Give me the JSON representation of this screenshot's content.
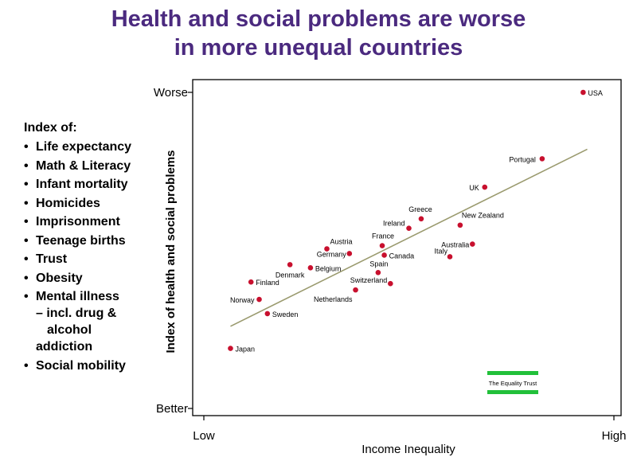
{
  "title_line1": "Health and social problems are worse",
  "title_line2": "in more unequal countries",
  "index_panel": {
    "heading": "Index of:",
    "items": [
      {
        "lines": [
          "Life expectancy"
        ]
      },
      {
        "lines": [
          "Math & Literacy"
        ]
      },
      {
        "lines": [
          "Infant mortality"
        ]
      },
      {
        "lines": [
          "Homicides"
        ]
      },
      {
        "lines": [
          "Imprisonment"
        ]
      },
      {
        "lines": [
          "Teenage births"
        ]
      },
      {
        "lines": [
          "Trust"
        ]
      },
      {
        "lines": [
          "Obesity"
        ]
      },
      {
        "lines": [
          "Mental illness",
          "– incl. drug &",
          "alcohol",
          "addiction"
        ]
      },
      {
        "lines": [
          "Social mobility"
        ]
      }
    ]
  },
  "logo_text": "The Equality Trust",
  "colors": {
    "title": "#4b2a7f",
    "points": "#c8102e",
    "trend": "#9a9a6e",
    "logo_green": "#22c03a"
  },
  "chart_data": {
    "type": "scatter",
    "xlabel": "Income Inequality",
    "ylabel": "Index of health and social problems",
    "x_tick_labels": [
      "Low",
      "High"
    ],
    "y_tick_labels": [
      "Worse",
      "Better"
    ],
    "xlim": [
      0,
      100
    ],
    "ylim": [
      0,
      100
    ],
    "grid": false,
    "trend_line": {
      "x": [
        6.5,
        93.5
      ],
      "y": [
        26,
        82
      ]
    },
    "points": [
      {
        "label": "USA",
        "x": 92.5,
        "y": 100
      },
      {
        "label": "Portugal",
        "x": 82.5,
        "y": 79
      },
      {
        "label": "UK",
        "x": 68.5,
        "y": 70
      },
      {
        "label": "Greece",
        "x": 53,
        "y": 60
      },
      {
        "label": "Ireland",
        "x": 50,
        "y": 57
      },
      {
        "label": "New Zealand",
        "x": 62.5,
        "y": 58
      },
      {
        "label": "Australia",
        "x": 65.5,
        "y": 52
      },
      {
        "label": "Italy",
        "x": 60,
        "y": 48
      },
      {
        "label": "France",
        "x": 43.5,
        "y": 51.5
      },
      {
        "label": "Canada",
        "x": 44,
        "y": 48.5
      },
      {
        "label": "Austria",
        "x": 30,
        "y": 50.5
      },
      {
        "label": "Germany",
        "x": 35.5,
        "y": 49
      },
      {
        "label": "Denmark",
        "x": 21,
        "y": 45.5
      },
      {
        "label": "Belgium",
        "x": 26,
        "y": 44.5
      },
      {
        "label": "Spain",
        "x": 42.5,
        "y": 43
      },
      {
        "label": "Switzerland",
        "x": 45.5,
        "y": 39.5
      },
      {
        "label": "Netherlands",
        "x": 37,
        "y": 37.5
      },
      {
        "label": "Finland",
        "x": 11.5,
        "y": 40
      },
      {
        "label": "Norway",
        "x": 13.5,
        "y": 34.5
      },
      {
        "label": "Sweden",
        "x": 15.5,
        "y": 30
      },
      {
        "label": "Japan",
        "x": 6.5,
        "y": 19
      }
    ]
  }
}
